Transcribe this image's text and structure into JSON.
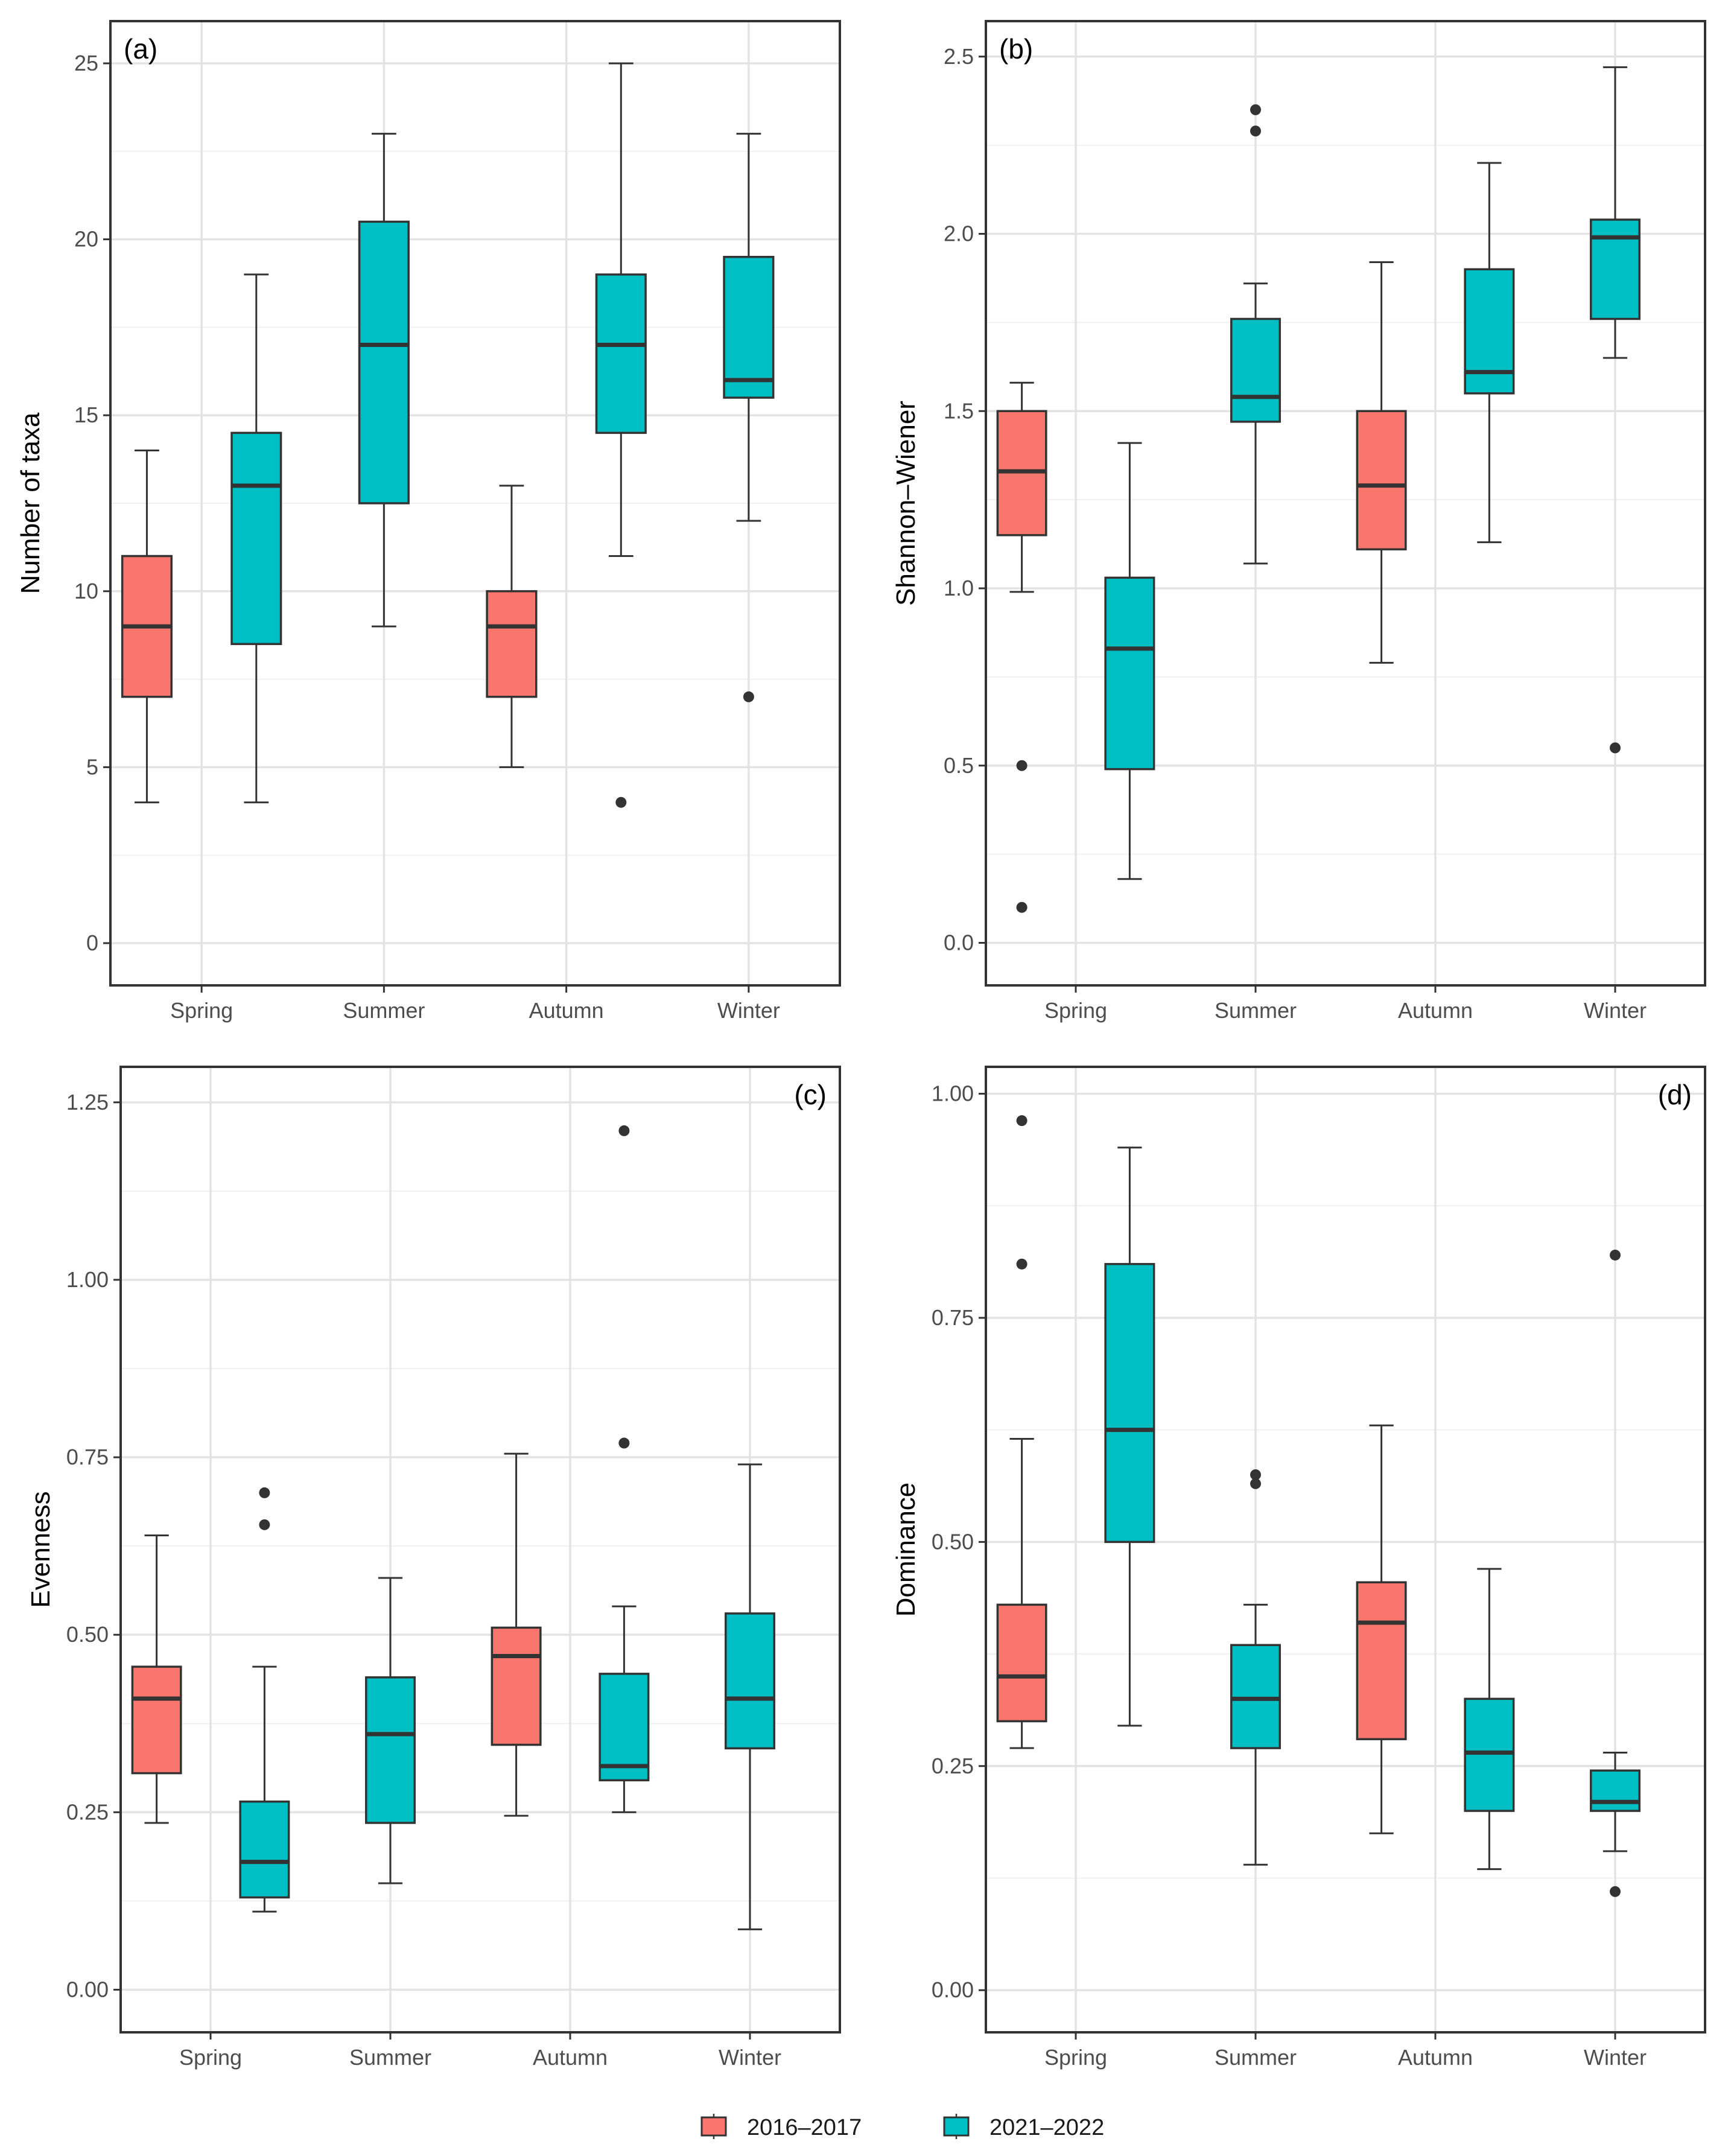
{
  "legend": {
    "series": [
      {
        "name": "2016–2017",
        "color": "#F8766D"
      },
      {
        "name": "2021–2022",
        "color": "#00BFC4"
      }
    ]
  },
  "chart_data": [
    {
      "type": "boxplot",
      "panel_label": "(a)",
      "label_position": "top-left",
      "ylabel": "Number of taxa",
      "categories": [
        "Spring",
        "Summer",
        "Autumn",
        "Winter"
      ],
      "ylim": [
        -1.2,
        26.2
      ],
      "yticks": [
        0,
        5,
        10,
        15,
        20,
        25
      ],
      "tick_labels": [
        "0",
        "5",
        "10",
        "15",
        "20",
        "25"
      ],
      "boxes": [
        {
          "category": "Spring",
          "series": "2016–2017",
          "min": 4,
          "q1": 7,
          "median": 9,
          "q3": 11,
          "max": 14,
          "outliers": []
        },
        {
          "category": "Spring",
          "series": "2021–2022",
          "min": 4,
          "q1": 8.5,
          "median": 13,
          "q3": 14.5,
          "max": 19,
          "outliers": []
        },
        {
          "category": "Summer",
          "series": "2021–2022",
          "min": 9,
          "q1": 12.5,
          "median": 17,
          "q3": 20.5,
          "max": 23,
          "outliers": []
        },
        {
          "category": "Autumn",
          "series": "2016–2017",
          "min": 5,
          "q1": 7,
          "median": 9,
          "q3": 10,
          "max": 13,
          "outliers": []
        },
        {
          "category": "Autumn",
          "series": "2021–2022",
          "min": 11,
          "q1": 14.5,
          "median": 17,
          "q3": 19,
          "max": 25,
          "outliers": [
            4
          ]
        },
        {
          "category": "Winter",
          "series": "2021–2022",
          "min": 12,
          "q1": 15.5,
          "median": 16,
          "q3": 19.5,
          "max": 23,
          "outliers": [
            7
          ]
        }
      ]
    },
    {
      "type": "boxplot",
      "panel_label": "(b)",
      "label_position": "top-left",
      "ylabel": "Shannon–Wiener",
      "categories": [
        "Spring",
        "Summer",
        "Autumn",
        "Winter"
      ],
      "ylim": [
        -0.12,
        2.6
      ],
      "yticks": [
        0,
        0.5,
        1.0,
        1.5,
        2.0,
        2.5
      ],
      "tick_labels": [
        "0.0",
        "0.5",
        "1.0",
        "1.5",
        "2.0",
        "2.5"
      ],
      "boxes": [
        {
          "category": "Spring",
          "series": "2016–2017",
          "min": 0.99,
          "q1": 1.15,
          "median": 1.33,
          "q3": 1.5,
          "max": 1.58,
          "outliers": [
            0.5,
            0.1
          ]
        },
        {
          "category": "Spring",
          "series": "2021–2022",
          "min": 0.18,
          "q1": 0.49,
          "median": 0.83,
          "q3": 1.03,
          "max": 1.41,
          "outliers": []
        },
        {
          "category": "Summer",
          "series": "2021–2022",
          "min": 1.07,
          "q1": 1.47,
          "median": 1.54,
          "q3": 1.76,
          "max": 1.86,
          "outliers": [
            2.35,
            2.29
          ]
        },
        {
          "category": "Autumn",
          "series": "2016–2017",
          "min": 0.79,
          "q1": 1.11,
          "median": 1.29,
          "q3": 1.5,
          "max": 1.92,
          "outliers": []
        },
        {
          "category": "Autumn",
          "series": "2021–2022",
          "min": 1.13,
          "q1": 1.55,
          "median": 1.61,
          "q3": 1.9,
          "max": 2.2,
          "outliers": []
        },
        {
          "category": "Winter",
          "series": "2021–2022",
          "min": 1.65,
          "q1": 1.76,
          "median": 1.99,
          "q3": 2.04,
          "max": 2.47,
          "outliers": [
            0.55
          ]
        }
      ]
    },
    {
      "type": "boxplot",
      "panel_label": "(c)",
      "label_position": "top-right",
      "ylabel": "Evenness",
      "categories": [
        "Spring",
        "Summer",
        "Autumn",
        "Winter"
      ],
      "ylim": [
        -0.06,
        1.3
      ],
      "yticks": [
        0,
        0.25,
        0.5,
        0.75,
        1.0,
        1.25
      ],
      "tick_labels": [
        "0.00",
        "0.25",
        "0.50",
        "0.75",
        "1.00",
        "1.25"
      ],
      "boxes": [
        {
          "category": "Spring",
          "series": "2016–2017",
          "min": 0.235,
          "q1": 0.305,
          "median": 0.41,
          "q3": 0.455,
          "max": 0.64,
          "outliers": []
        },
        {
          "category": "Spring",
          "series": "2021–2022",
          "min": 0.11,
          "q1": 0.13,
          "median": 0.18,
          "q3": 0.265,
          "max": 0.455,
          "outliers": [
            0.7,
            0.655
          ]
        },
        {
          "category": "Summer",
          "series": "2021–2022",
          "min": 0.15,
          "q1": 0.235,
          "median": 0.36,
          "q3": 0.44,
          "max": 0.58,
          "outliers": []
        },
        {
          "category": "Autumn",
          "series": "2016–2017",
          "min": 0.245,
          "q1": 0.345,
          "median": 0.47,
          "q3": 0.51,
          "max": 0.755,
          "outliers": []
        },
        {
          "category": "Autumn",
          "series": "2021–2022",
          "min": 0.25,
          "q1": 0.295,
          "median": 0.315,
          "q3": 0.445,
          "max": 0.54,
          "outliers": [
            1.21,
            0.77
          ]
        },
        {
          "category": "Winter",
          "series": "2021–2022",
          "min": 0.085,
          "q1": 0.34,
          "median": 0.41,
          "q3": 0.53,
          "max": 0.74,
          "outliers": []
        }
      ]
    },
    {
      "type": "boxplot",
      "panel_label": "(d)",
      "label_position": "top-right",
      "ylabel": "Dominance",
      "categories": [
        "Spring",
        "Summer",
        "Autumn",
        "Winter"
      ],
      "ylim": [
        -0.047,
        1.03
      ],
      "yticks": [
        0,
        0.25,
        0.5,
        0.75,
        1.0
      ],
      "tick_labels": [
        "0.00",
        "0.25",
        "0.50",
        "0.75",
        "1.00"
      ],
      "boxes": [
        {
          "category": "Spring",
          "series": "2016–2017",
          "min": 0.27,
          "q1": 0.3,
          "median": 0.35,
          "q3": 0.43,
          "max": 0.615,
          "outliers": [
            0.97,
            0.81
          ]
        },
        {
          "category": "Spring",
          "series": "2021–2022",
          "min": 0.295,
          "q1": 0.5,
          "median": 0.625,
          "q3": 0.81,
          "max": 0.94,
          "outliers": []
        },
        {
          "category": "Summer",
          "series": "2021–2022",
          "min": 0.14,
          "q1": 0.27,
          "median": 0.325,
          "q3": 0.385,
          "max": 0.43,
          "outliers": [
            0.575,
            0.565
          ]
        },
        {
          "category": "Autumn",
          "series": "2016–2017",
          "min": 0.175,
          "q1": 0.28,
          "median": 0.41,
          "q3": 0.455,
          "max": 0.63,
          "outliers": []
        },
        {
          "category": "Autumn",
          "series": "2021–2022",
          "min": 0.135,
          "q1": 0.2,
          "median": 0.265,
          "q3": 0.325,
          "max": 0.47,
          "outliers": []
        },
        {
          "category": "Winter",
          "series": "2021–2022",
          "min": 0.155,
          "q1": 0.2,
          "median": 0.21,
          "q3": 0.245,
          "max": 0.265,
          "outliers": [
            0.82,
            0.11
          ]
        }
      ]
    }
  ]
}
